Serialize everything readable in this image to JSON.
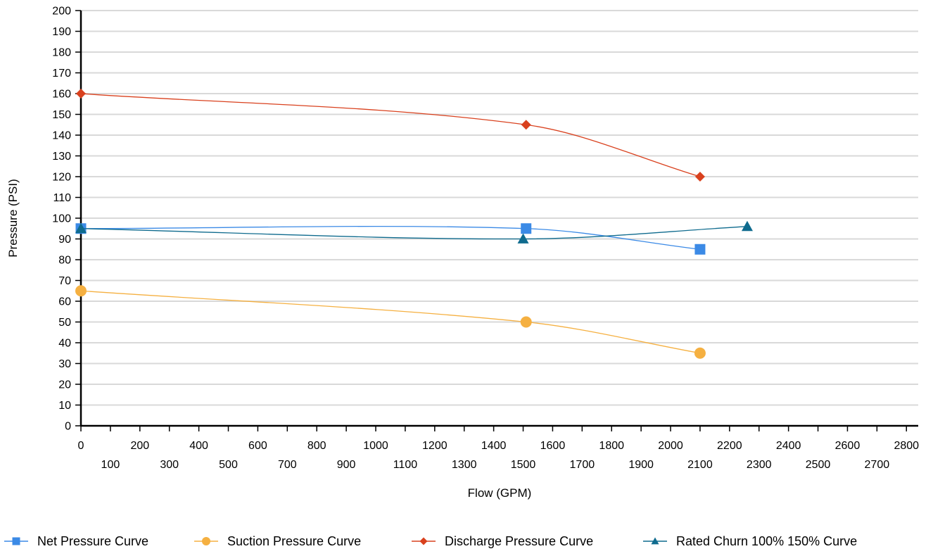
{
  "chart_data": {
    "type": "line",
    "title": "",
    "xlabel": "Flow (GPM)",
    "ylabel": "Pressure (PSI)",
    "xlim": [
      0,
      2840
    ],
    "ylim": [
      0,
      200
    ],
    "x_ticks_top_row": [
      0,
      200,
      400,
      600,
      800,
      1000,
      1200,
      1400,
      1600,
      1800,
      2000,
      2200,
      2400,
      2600,
      2800
    ],
    "x_ticks_bottom_row": [
      100,
      300,
      500,
      700,
      900,
      1100,
      1300,
      1500,
      1700,
      1900,
      2100,
      2300,
      2500,
      2700
    ],
    "y_ticks": [
      0,
      10,
      20,
      30,
      40,
      50,
      60,
      70,
      80,
      90,
      100,
      110,
      120,
      130,
      140,
      150,
      160,
      170,
      180,
      190,
      200
    ],
    "grid": "horizontal",
    "legend_position": "bottom",
    "series": [
      {
        "name": "Net Pressure Curve",
        "color": "#3b8ae6",
        "marker": "square",
        "points": [
          {
            "x": 0,
            "y": 95
          },
          {
            "x": 1510,
            "y": 95
          },
          {
            "x": 2100,
            "y": 85
          }
        ]
      },
      {
        "name": "Suction Pressure Curve",
        "color": "#f5b041",
        "marker": "circle",
        "points": [
          {
            "x": 0,
            "y": 65
          },
          {
            "x": 1510,
            "y": 50
          },
          {
            "x": 2100,
            "y": 35
          }
        ]
      },
      {
        "name": "Discharge Pressure Curve",
        "color": "#d9411e",
        "marker": "diamond",
        "points": [
          {
            "x": 0,
            "y": 160
          },
          {
            "x": 1510,
            "y": 145
          },
          {
            "x": 2100,
            "y": 120
          }
        ]
      },
      {
        "name": "Rated Churn  100%  150% Curve",
        "color": "#0f6b8e",
        "marker": "triangle",
        "points": [
          {
            "x": 0,
            "y": 95
          },
          {
            "x": 1500,
            "y": 90
          },
          {
            "x": 2260,
            "y": 96
          }
        ]
      }
    ]
  }
}
